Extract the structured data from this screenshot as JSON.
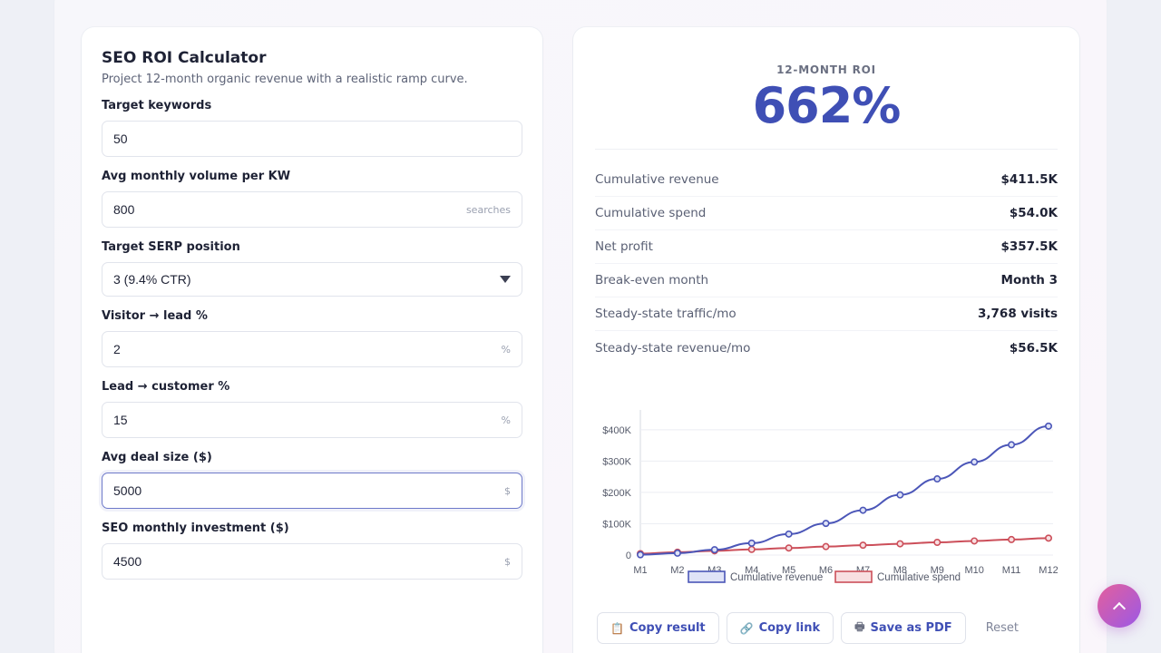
{
  "calculator": {
    "title": "SEO ROI Calculator",
    "subtitle": "Project 12-month organic revenue with a realistic ramp curve.",
    "fields": [
      {
        "label": "Target keywords",
        "value": "50",
        "suffix": ""
      },
      {
        "label": "Avg monthly volume per KW",
        "value": "800",
        "suffix": "searches"
      },
      {
        "label": "Target SERP position",
        "value": "3 (9.4% CTR)",
        "suffix": ""
      },
      {
        "label": "Visitor → lead %",
        "value": "2",
        "suffix": "%"
      },
      {
        "label": "Lead → customer %",
        "value": "15",
        "suffix": "%"
      },
      {
        "label": "Avg deal size ($)",
        "value": "5000",
        "suffix": "$"
      },
      {
        "label": "SEO monthly investment ($)",
        "value": "4500",
        "suffix": "$"
      }
    ]
  },
  "results": {
    "roi_label": "12-MONTH ROI",
    "roi_value": "662%",
    "stats": [
      {
        "label": "Cumulative revenue",
        "value": "$411.5K"
      },
      {
        "label": "Cumulative spend",
        "value": "$54.0K"
      },
      {
        "label": "Net profit",
        "value": "$357.5K"
      },
      {
        "label": "Break-even month",
        "value": "Month 3"
      },
      {
        "label": "Steady-state traffic/mo",
        "value": "3,768 visits"
      },
      {
        "label": "Steady-state revenue/mo",
        "value": "$56.5K"
      }
    ]
  },
  "chart_data": {
    "type": "line",
    "categories": [
      "M1",
      "M2",
      "M3",
      "M4",
      "M5",
      "M6",
      "M7",
      "M8",
      "M9",
      "M10",
      "M11",
      "M12"
    ],
    "y_ticks": [
      0,
      100000,
      200000,
      300000,
      400000
    ],
    "y_tick_labels": [
      "0",
      "$100K",
      "$200K",
      "$300K",
      "$400K"
    ],
    "ylim": [
      0,
      440000
    ],
    "grid": true,
    "legend_position": "bottom",
    "series": [
      {
        "name": "Cumulative revenue",
        "color": "#4b56b8",
        "fill": "#dfe3f7",
        "values": [
          1000,
          6000,
          17000,
          38000,
          67000,
          101000,
          143000,
          192000,
          243000,
          297000,
          352000,
          411500
        ]
      },
      {
        "name": "Cumulative spend",
        "color": "#cc4f5a",
        "fill": "#f8dfe1",
        "values": [
          4500,
          9000,
          13500,
          18000,
          22500,
          27000,
          31500,
          36000,
          40500,
          45000,
          49500,
          54000
        ]
      }
    ]
  },
  "actions": {
    "copy_result": "Copy result",
    "copy_link": "Copy link",
    "save_pdf": "Save as PDF",
    "reset": "Reset"
  },
  "icons": {
    "copy_result": "clipboard-icon",
    "copy_link": "link-icon",
    "save_pdf": "printer-icon",
    "scroll_top": "chevron-up-icon"
  }
}
